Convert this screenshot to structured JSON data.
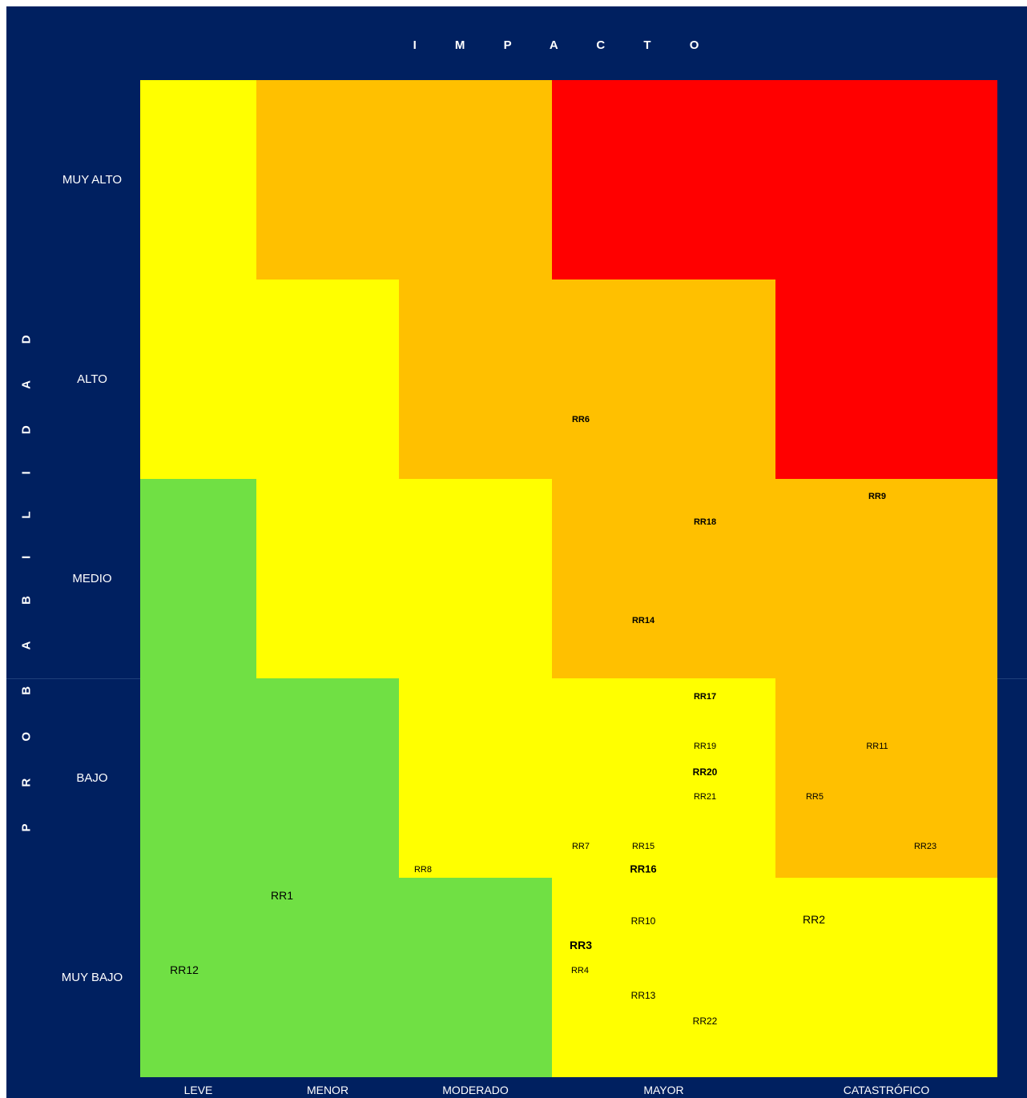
{
  "chart_data": {
    "type": "heatmap",
    "x_axis_title": "I M P A C T O",
    "y_axis_title": "P R O B A B I L I D A D",
    "columns": [
      "LEVE",
      "MENOR",
      "MODERADO",
      "MAYOR",
      "CATASTRÓFICO"
    ],
    "rows": [
      "MUY ALTO",
      "ALTO",
      "MEDIO",
      "BAJO",
      "MUY BAJO"
    ],
    "colors": {
      "green": "#70E044",
      "yellow": "#FFFF00",
      "orange": "#FFC000",
      "red": "#FF0000"
    },
    "zone_grid": [
      [
        "yellow",
        "orange",
        "orange",
        "red",
        "red"
      ],
      [
        "yellow",
        "yellow",
        "orange",
        "orange",
        "red"
      ],
      [
        "green",
        "yellow",
        "yellow",
        "orange",
        "orange"
      ],
      [
        "green",
        "green",
        "yellow",
        "yellow",
        "orange"
      ],
      [
        "green",
        "green",
        "green",
        "yellow",
        "yellow"
      ]
    ],
    "risks": [
      {
        "id": "RR6",
        "impact": "MAYOR",
        "probability": "ALTO"
      },
      {
        "id": "RR9",
        "impact": "CATASTRÓFICO",
        "probability": "MEDIO"
      },
      {
        "id": "RR18",
        "impact": "MAYOR",
        "probability": "MEDIO"
      },
      {
        "id": "RR14",
        "impact": "MAYOR",
        "probability": "MEDIO"
      },
      {
        "id": "RR17",
        "impact": "MAYOR",
        "probability": "BAJO"
      },
      {
        "id": "RR19",
        "impact": "MAYOR",
        "probability": "BAJO"
      },
      {
        "id": "RR11",
        "impact": "CATASTRÓFICO",
        "probability": "BAJO"
      },
      {
        "id": "RR20",
        "impact": "MAYOR",
        "probability": "BAJO"
      },
      {
        "id": "RR21",
        "impact": "MAYOR",
        "probability": "BAJO"
      },
      {
        "id": "RR5",
        "impact": "CATASTRÓFICO",
        "probability": "BAJO"
      },
      {
        "id": "RR7",
        "impact": "MAYOR",
        "probability": "BAJO"
      },
      {
        "id": "RR15",
        "impact": "MAYOR",
        "probability": "BAJO"
      },
      {
        "id": "RR23",
        "impact": "CATASTRÓFICO",
        "probability": "BAJO"
      },
      {
        "id": "RR8",
        "impact": "MODERADO",
        "probability": "BAJO"
      },
      {
        "id": "RR16",
        "impact": "MAYOR",
        "probability": "BAJO"
      },
      {
        "id": "RR1",
        "impact": "MENOR",
        "probability": "MUY BAJO"
      },
      {
        "id": "RR10",
        "impact": "MAYOR",
        "probability": "MUY BAJO"
      },
      {
        "id": "RR2",
        "impact": "CATASTRÓFICO",
        "probability": "MUY BAJO"
      },
      {
        "id": "RR3",
        "impact": "MAYOR",
        "probability": "MUY BAJO"
      },
      {
        "id": "RR12",
        "impact": "LEVE",
        "probability": "MUY BAJO"
      },
      {
        "id": "RR4",
        "impact": "MAYOR",
        "probability": "MUY BAJO"
      },
      {
        "id": "RR13",
        "impact": "MAYOR",
        "probability": "MUY BAJO"
      },
      {
        "id": "RR22",
        "impact": "MAYOR",
        "probability": "MUY BAJO"
      }
    ]
  }
}
